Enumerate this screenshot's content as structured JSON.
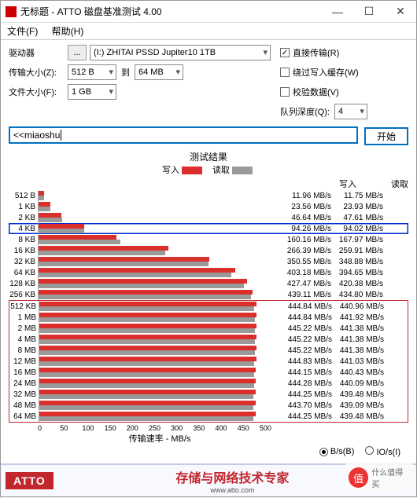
{
  "window": {
    "title": "无标题 - ATTO 磁盘基准测试 4.00"
  },
  "menu": {
    "file": "文件(F)",
    "help": "帮助(H)"
  },
  "form": {
    "drive_label": "驱动器",
    "browse": "...",
    "drive_value": "(I:) ZHITAI PSSD Jupiter10 1TB",
    "xfer_label": "传输大小(Z):",
    "size_from": "512 B",
    "to": "到",
    "size_to": "64 MB",
    "file_label": "文件大小(F):",
    "file_size": "1 GB",
    "direct": "直接传输(R)",
    "bypass": "绕过写入缓存(W)",
    "verify": "校验数据(V)",
    "queue_label": "队列深度(Q):",
    "queue_value": "4"
  },
  "desc": {
    "prefix": "<< ",
    "text": "miaoshu"
  },
  "start": "开始",
  "results_title": "测试结果",
  "legend": {
    "write": "写入",
    "read": "读取"
  },
  "headers": {
    "write": "写入",
    "read": "读取"
  },
  "colors": {
    "write": "#da2f2b",
    "read": "#9a9a9a",
    "highlight_blue": "#0030d0",
    "highlight_red": "#c1272d"
  },
  "max_speed": 500,
  "rows": [
    {
      "label": "512 B",
      "write": 11.96,
      "read": 11.75,
      "wtxt": "11.96 MB/s",
      "rtxt": "11.75 MB/s"
    },
    {
      "label": "1 KB",
      "write": 23.56,
      "read": 23.93,
      "wtxt": "23.56 MB/s",
      "rtxt": "23.93 MB/s"
    },
    {
      "label": "2 KB",
      "write": 46.64,
      "read": 47.61,
      "wtxt": "46.64 MB/s",
      "rtxt": "47.61 MB/s"
    },
    {
      "label": "4 KB",
      "write": 94.26,
      "read": 94.02,
      "wtxt": "94.26 MB/s",
      "rtxt": "94.02 MB/s",
      "hl": "blue"
    },
    {
      "label": "8 KB",
      "write": 160.16,
      "read": 167.97,
      "wtxt": "160.16 MB/s",
      "rtxt": "167.97 MB/s"
    },
    {
      "label": "16 KB",
      "write": 266.39,
      "read": 259.91,
      "wtxt": "266.39 MB/s",
      "rtxt": "259.91 MB/s"
    },
    {
      "label": "32 KB",
      "write": 350.55,
      "read": 348.88,
      "wtxt": "350.55 MB/s",
      "rtxt": "348.88 MB/s"
    },
    {
      "label": "64 KB",
      "write": 403.18,
      "read": 394.65,
      "wtxt": "403.18 MB/s",
      "rtxt": "394.65 MB/s"
    },
    {
      "label": "128 KB",
      "write": 427.47,
      "read": 420.38,
      "wtxt": "427.47 MB/s",
      "rtxt": "420.38 MB/s"
    },
    {
      "label": "256 KB",
      "write": 439.11,
      "read": 434.8,
      "wtxt": "439.11 MB/s",
      "rtxt": "434.80 MB/s"
    },
    {
      "label": "512 KB",
      "write": 444.84,
      "read": 440.96,
      "wtxt": "444.84 MB/s",
      "rtxt": "440.96 MB/s",
      "group": "red"
    },
    {
      "label": "1 MB",
      "write": 444.84,
      "read": 441.92,
      "wtxt": "444.84 MB/s",
      "rtxt": "441.92 MB/s",
      "group": "red"
    },
    {
      "label": "2 MB",
      "write": 445.22,
      "read": 441.38,
      "wtxt": "445.22 MB/s",
      "rtxt": "441.38 MB/s",
      "group": "red"
    },
    {
      "label": "4 MB",
      "write": 445.22,
      "read": 441.38,
      "wtxt": "445.22 MB/s",
      "rtxt": "441.38 MB/s",
      "group": "red"
    },
    {
      "label": "8 MB",
      "write": 445.22,
      "read": 441.38,
      "wtxt": "445.22 MB/s",
      "rtxt": "441.38 MB/s",
      "group": "red"
    },
    {
      "label": "12 MB",
      "write": 444.83,
      "read": 441.03,
      "wtxt": "444.83 MB/s",
      "rtxt": "441.03 MB/s",
      "group": "red"
    },
    {
      "label": "16 MB",
      "write": 444.15,
      "read": 440.43,
      "wtxt": "444.15 MB/s",
      "rtxt": "440.43 MB/s",
      "group": "red"
    },
    {
      "label": "24 MB",
      "write": 444.28,
      "read": 440.09,
      "wtxt": "444.28 MB/s",
      "rtxt": "440.09 MB/s",
      "group": "red"
    },
    {
      "label": "32 MB",
      "write": 444.25,
      "read": 439.48,
      "wtxt": "444.25 MB/s",
      "rtxt": "439.48 MB/s",
      "group": "red"
    },
    {
      "label": "48 MB",
      "write": 443.7,
      "read": 439.09,
      "wtxt": "443.70 MB/s",
      "rtxt": "439.09 MB/s",
      "group": "red"
    },
    {
      "label": "64 MB",
      "write": 444.25,
      "read": 439.48,
      "wtxt": "444.25 MB/s",
      "rtxt": "439.48 MB/s",
      "group": "red"
    }
  ],
  "xaxis": {
    "ticks": [
      "0",
      "50",
      "100",
      "150",
      "200",
      "250",
      "300",
      "350",
      "400",
      "450",
      "500"
    ],
    "label": "传输速率 - MB/s"
  },
  "units": {
    "bytes": "B/s(B)",
    "io": "IO/s(I)"
  },
  "footer": {
    "logo": "ATTO",
    "text": "存储与网络技术专家",
    "url": "www.atto.com"
  },
  "watermark": {
    "char": "值",
    "text": "什么值得买"
  }
}
